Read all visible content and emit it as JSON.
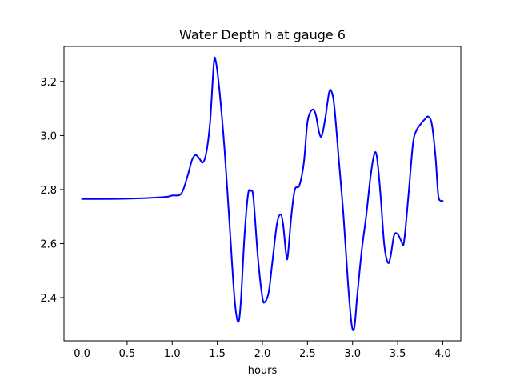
{
  "chart_data": {
    "type": "line",
    "title": "Water Depth h at gauge 6",
    "xlabel": "hours",
    "ylabel": "",
    "xlim": [
      -0.2,
      4.2
    ],
    "ylim": [
      2.24,
      3.33
    ],
    "grid": false,
    "xticks": [
      0.0,
      0.5,
      1.0,
      1.5,
      2.0,
      2.5,
      3.0,
      3.5,
      4.0
    ],
    "xtick_labels": [
      "0.0",
      "0.5",
      "1.0",
      "1.5",
      "2.0",
      "2.5",
      "3.0",
      "3.5",
      "4.0"
    ],
    "yticks": [
      2.4,
      2.6,
      2.8,
      3.0,
      3.2
    ],
    "ytick_labels": [
      "2.4",
      "2.6",
      "2.8",
      "3.0",
      "3.2"
    ],
    "series": [
      {
        "name": "h",
        "color": "#0000ff",
        "points": [
          [
            0.0,
            2.765
          ],
          [
            0.5,
            2.766
          ],
          [
            0.9,
            2.772
          ],
          [
            1.0,
            2.778
          ],
          [
            1.1,
            2.785
          ],
          [
            1.17,
            2.85
          ],
          [
            1.22,
            2.91
          ],
          [
            1.26,
            2.928
          ],
          [
            1.3,
            2.915
          ],
          [
            1.34,
            2.9
          ],
          [
            1.38,
            2.94
          ],
          [
            1.42,
            3.05
          ],
          [
            1.46,
            3.26
          ],
          [
            1.48,
            3.28
          ],
          [
            1.52,
            3.18
          ],
          [
            1.58,
            2.95
          ],
          [
            1.64,
            2.65
          ],
          [
            1.69,
            2.4
          ],
          [
            1.73,
            2.31
          ],
          [
            1.76,
            2.38
          ],
          [
            1.8,
            2.62
          ],
          [
            1.84,
            2.78
          ],
          [
            1.87,
            2.795
          ],
          [
            1.9,
            2.77
          ],
          [
            1.95,
            2.55
          ],
          [
            2.0,
            2.4
          ],
          [
            2.03,
            2.385
          ],
          [
            2.07,
            2.42
          ],
          [
            2.11,
            2.53
          ],
          [
            2.16,
            2.67
          ],
          [
            2.2,
            2.708
          ],
          [
            2.23,
            2.67
          ],
          [
            2.26,
            2.57
          ],
          [
            2.28,
            2.55
          ],
          [
            2.32,
            2.7
          ],
          [
            2.36,
            2.8
          ],
          [
            2.41,
            2.815
          ],
          [
            2.46,
            2.9
          ],
          [
            2.5,
            3.05
          ],
          [
            2.55,
            3.095
          ],
          [
            2.59,
            3.08
          ],
          [
            2.63,
            3.01
          ],
          [
            2.66,
            3.0
          ],
          [
            2.7,
            3.07
          ],
          [
            2.74,
            3.16
          ],
          [
            2.77,
            3.16
          ],
          [
            2.8,
            3.1
          ],
          [
            2.85,
            2.9
          ],
          [
            2.9,
            2.7
          ],
          [
            2.95,
            2.45
          ],
          [
            2.99,
            2.3
          ],
          [
            3.02,
            2.29
          ],
          [
            3.05,
            2.4
          ],
          [
            3.1,
            2.57
          ],
          [
            3.15,
            2.7
          ],
          [
            3.2,
            2.85
          ],
          [
            3.24,
            2.93
          ],
          [
            3.27,
            2.92
          ],
          [
            3.31,
            2.78
          ],
          [
            3.35,
            2.6
          ],
          [
            3.39,
            2.53
          ],
          [
            3.42,
            2.55
          ],
          [
            3.46,
            2.63
          ],
          [
            3.5,
            2.635
          ],
          [
            3.54,
            2.61
          ],
          [
            3.57,
            2.605
          ],
          [
            3.62,
            2.78
          ],
          [
            3.67,
            2.97
          ],
          [
            3.71,
            3.02
          ],
          [
            3.75,
            3.04
          ],
          [
            3.8,
            3.06
          ],
          [
            3.84,
            3.07
          ],
          [
            3.88,
            3.04
          ],
          [
            3.92,
            2.92
          ],
          [
            3.95,
            2.78
          ],
          [
            3.98,
            2.758
          ],
          [
            4.0,
            2.758
          ]
        ]
      }
    ]
  }
}
